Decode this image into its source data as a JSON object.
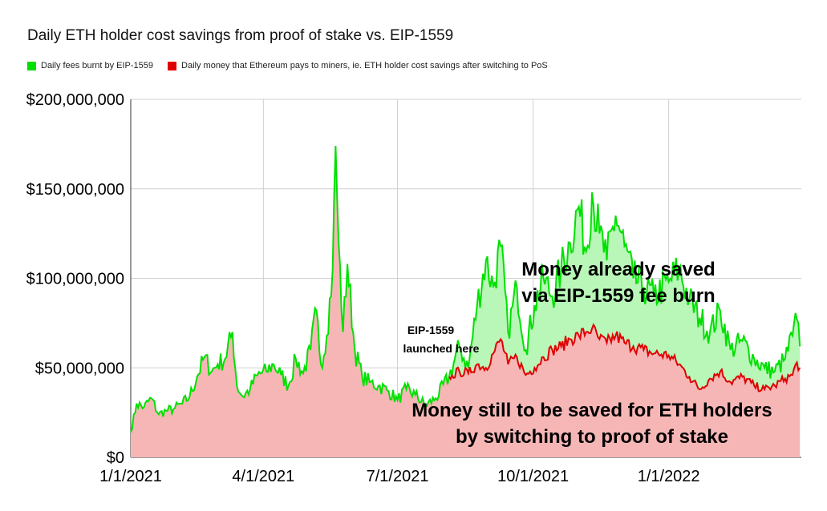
{
  "chart_data": {
    "type": "area",
    "title": "Daily ETH holder cost savings from proof of stake vs. EIP-1559",
    "legend_position": "top-left",
    "grid": true,
    "ylim": [
      0,
      200000000
    ],
    "y_ticks": [
      "$0",
      "$50,000,000",
      "$100,000,000",
      "$150,000,000",
      "$200,000,000"
    ],
    "x_ticks": [
      "1/1/2021",
      "4/1/2021",
      "7/1/2021",
      "10/1/2021",
      "1/1/2022"
    ],
    "series": [
      {
        "name": "Daily fees burnt by EIP-1559",
        "color": "#00e000",
        "fill": "#b8f7b8",
        "points": [
          [
            "2021-01-01",
            14000000
          ],
          [
            "2021-01-05",
            30000000
          ],
          [
            "2021-01-10",
            28000000
          ],
          [
            "2021-01-15",
            33000000
          ],
          [
            "2021-01-20",
            24000000
          ],
          [
            "2021-01-25",
            26000000
          ],
          [
            "2021-01-30",
            27000000
          ],
          [
            "2021-02-05",
            30000000
          ],
          [
            "2021-02-10",
            34000000
          ],
          [
            "2021-02-15",
            45000000
          ],
          [
            "2021-02-20",
            56000000
          ],
          [
            "2021-02-25",
            48000000
          ],
          [
            "2021-03-01",
            52000000
          ],
          [
            "2021-03-06",
            55000000
          ],
          [
            "2021-03-11",
            70000000
          ],
          [
            "2021-03-14",
            40000000
          ],
          [
            "2021-03-18",
            34000000
          ],
          [
            "2021-03-23",
            38000000
          ],
          [
            "2021-03-28",
            46000000
          ],
          [
            "2021-04-03",
            48000000
          ],
          [
            "2021-04-08",
            52000000
          ],
          [
            "2021-04-13",
            46000000
          ],
          [
            "2021-04-18",
            40000000
          ],
          [
            "2021-04-23",
            55000000
          ],
          [
            "2021-04-28",
            47000000
          ],
          [
            "2021-05-03",
            60000000
          ],
          [
            "2021-05-07",
            82000000
          ],
          [
            "2021-05-10",
            52000000
          ],
          [
            "2021-05-14",
            68000000
          ],
          [
            "2021-05-18",
            105000000
          ],
          [
            "2021-05-20",
            174000000
          ],
          [
            "2021-05-22",
            120000000
          ],
          [
            "2021-05-25",
            70000000
          ],
          [
            "2021-05-28",
            108000000
          ],
          [
            "2021-06-02",
            60000000
          ],
          [
            "2021-06-07",
            45000000
          ],
          [
            "2021-06-12",
            42000000
          ],
          [
            "2021-06-18",
            40000000
          ],
          [
            "2021-06-25",
            37000000
          ],
          [
            "2021-07-01",
            32000000
          ],
          [
            "2021-07-07",
            38000000
          ],
          [
            "2021-07-13",
            35000000
          ],
          [
            "2021-07-20",
            29000000
          ],
          [
            "2021-07-27",
            33000000
          ],
          [
            "2021-08-05",
            45000000
          ],
          [
            "2021-08-12",
            62000000
          ],
          [
            "2021-08-18",
            50000000
          ],
          [
            "2021-08-24",
            85000000
          ],
          [
            "2021-08-30",
            110000000
          ],
          [
            "2021-09-04",
            95000000
          ],
          [
            "2021-09-09",
            118000000
          ],
          [
            "2021-09-14",
            70000000
          ],
          [
            "2021-09-20",
            95000000
          ],
          [
            "2021-09-26",
            60000000
          ],
          [
            "2021-10-02",
            85000000
          ],
          [
            "2021-10-08",
            100000000
          ],
          [
            "2021-10-14",
            90000000
          ],
          [
            "2021-10-20",
            105000000
          ],
          [
            "2021-10-26",
            120000000
          ],
          [
            "2021-11-01",
            140000000
          ],
          [
            "2021-11-06",
            115000000
          ],
          [
            "2021-11-10",
            148000000
          ],
          [
            "2021-11-15",
            125000000
          ],
          [
            "2021-11-20",
            110000000
          ],
          [
            "2021-11-26",
            135000000
          ],
          [
            "2021-12-02",
            118000000
          ],
          [
            "2021-12-08",
            100000000
          ],
          [
            "2021-12-15",
            95000000
          ],
          [
            "2021-12-22",
            90000000
          ],
          [
            "2022-01-01",
            98000000
          ],
          [
            "2022-01-08",
            105000000
          ],
          [
            "2022-01-15",
            88000000
          ],
          [
            "2022-01-22",
            78000000
          ],
          [
            "2022-01-29",
            70000000
          ],
          [
            "2022-02-05",
            82000000
          ],
          [
            "2022-02-12",
            60000000
          ],
          [
            "2022-02-20",
            65000000
          ],
          [
            "2022-02-28",
            55000000
          ],
          [
            "2022-03-07",
            50000000
          ],
          [
            "2022-03-14",
            48000000
          ],
          [
            "2022-03-21",
            55000000
          ],
          [
            "2022-03-26",
            68000000
          ],
          [
            "2022-03-29",
            77000000
          ],
          [
            "2022-03-31",
            62000000
          ]
        ]
      },
      {
        "name": "Daily money that Ethereum pays to miners, ie. ETH holder cost savings after switching to PoS",
        "color": "#e00000",
        "fill": "#f7b6b6",
        "points": [
          [
            "2021-08-05",
            45000000
          ],
          [
            "2021-08-12",
            48000000
          ],
          [
            "2021-08-18",
            47000000
          ],
          [
            "2021-08-24",
            52000000
          ],
          [
            "2021-08-30",
            50000000
          ],
          [
            "2021-09-04",
            58000000
          ],
          [
            "2021-09-09",
            66000000
          ],
          [
            "2021-09-14",
            52000000
          ],
          [
            "2021-09-20",
            56000000
          ],
          [
            "2021-09-26",
            46000000
          ],
          [
            "2021-10-02",
            50000000
          ],
          [
            "2021-10-08",
            56000000
          ],
          [
            "2021-10-14",
            60000000
          ],
          [
            "2021-10-20",
            62000000
          ],
          [
            "2021-10-26",
            66000000
          ],
          [
            "2021-11-01",
            68000000
          ],
          [
            "2021-11-06",
            70000000
          ],
          [
            "2021-11-10",
            72000000
          ],
          [
            "2021-11-15",
            66000000
          ],
          [
            "2021-11-20",
            64000000
          ],
          [
            "2021-11-26",
            68000000
          ],
          [
            "2021-12-02",
            64000000
          ],
          [
            "2021-12-08",
            62000000
          ],
          [
            "2021-12-15",
            60000000
          ],
          [
            "2021-12-22",
            58000000
          ],
          [
            "2022-01-01",
            57000000
          ],
          [
            "2022-01-08",
            52000000
          ],
          [
            "2022-01-15",
            45000000
          ],
          [
            "2022-01-22",
            38000000
          ],
          [
            "2022-01-29",
            44000000
          ],
          [
            "2022-02-05",
            48000000
          ],
          [
            "2022-02-12",
            42000000
          ],
          [
            "2022-02-20",
            45000000
          ],
          [
            "2022-02-28",
            40000000
          ],
          [
            "2022-03-07",
            38000000
          ],
          [
            "2022-03-14",
            40000000
          ],
          [
            "2022-03-21",
            44000000
          ],
          [
            "2022-03-26",
            46000000
          ],
          [
            "2022-03-29",
            53000000
          ],
          [
            "2022-03-31",
            50000000
          ]
        ]
      }
    ],
    "annotations": {
      "launch_line1": "EIP-1559",
      "launch_line2": "launched here",
      "saved_line1": "Money already saved",
      "saved_line2": "via EIP-1559 fee burn",
      "tobe_line1": "Money still to be saved for ETH holders",
      "tobe_line2": "by switching to proof of stake"
    }
  }
}
